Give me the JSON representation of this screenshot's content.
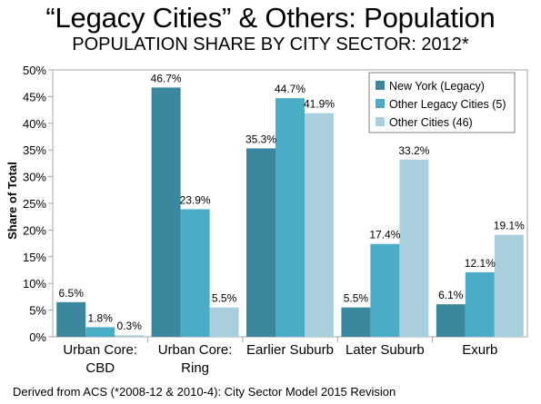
{
  "title": "“Legacy Cities” & Others: Population",
  "subtitle": "POPULATION SHARE BY CITY SECTOR: 2012*",
  "footnote": "Derived from ACS (*2008-12 & 2010-4): City Sector Model 2015 Revision",
  "chart_data": {
    "type": "bar",
    "title": "“Legacy Cities” & Others: Population",
    "subtitle": "POPULATION SHARE BY CITY SECTOR: 2012*",
    "ylabel": "Share of Total",
    "xlabel": "",
    "ylim": [
      0,
      50
    ],
    "y_ticks": [
      "0%",
      "5%",
      "10%",
      "15%",
      "20%",
      "25%",
      "30%",
      "35%",
      "40%",
      "45%",
      "50%"
    ],
    "y_tick_values": [
      0,
      5,
      10,
      15,
      20,
      25,
      30,
      35,
      40,
      45,
      50
    ],
    "categories": [
      [
        "Urban Core:",
        "CBD"
      ],
      [
        "Urban Core:",
        "Ring"
      ],
      [
        "Earlier Suburb"
      ],
      [
        "Later Suburb"
      ],
      [
        "Exurb"
      ]
    ],
    "series": [
      {
        "name": "New York (Legacy)",
        "color": "#3a879e",
        "values": [
          6.5,
          46.7,
          35.3,
          5.5,
          6.1
        ],
        "labels": [
          "6.5%",
          "46.7%",
          "35.3%",
          "5.5%",
          "6.1%"
        ]
      },
      {
        "name": "Other Legacy Cities (5)",
        "color": "#4bacc6",
        "values": [
          1.8,
          23.9,
          44.7,
          17.4,
          12.1
        ],
        "labels": [
          "1.8%",
          "23.9%",
          "44.7%",
          "17.4%",
          "12.1%"
        ]
      },
      {
        "name": "Other Cities (46)",
        "color": "#a9cfdd",
        "values": [
          0.3,
          5.5,
          41.9,
          33.2,
          19.1
        ],
        "labels": [
          "0.3%",
          "5.5%",
          "41.9%",
          "33.2%",
          "19.1%"
        ]
      }
    ],
    "grid": false,
    "legend_position": "top-right"
  }
}
